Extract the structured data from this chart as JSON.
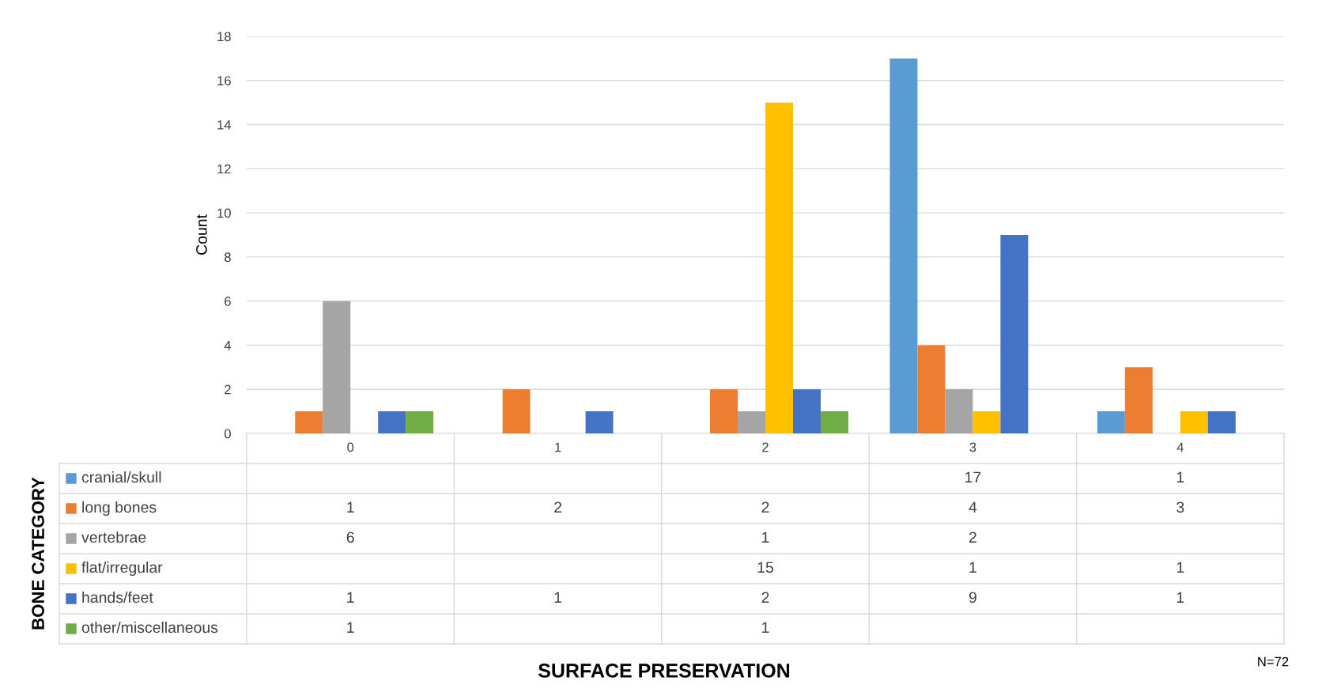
{
  "chart_data": {
    "type": "bar",
    "ylabel": "Count",
    "categories": [
      "0",
      "1",
      "2",
      "3",
      "4"
    ],
    "series": [
      {
        "name": "cranial/skull",
        "color": "#5b9bd5",
        "values": [
          null,
          null,
          null,
          17,
          1
        ]
      },
      {
        "name": "long bones",
        "color": "#ed7d31",
        "values": [
          1,
          2,
          2,
          4,
          3
        ]
      },
      {
        "name": "vertebrae",
        "color": "#a5a5a5",
        "values": [
          6,
          null,
          1,
          2,
          null
        ]
      },
      {
        "name": "flat/irregular",
        "color": "#ffc000",
        "values": [
          null,
          null,
          15,
          1,
          1
        ]
      },
      {
        "name": "hands/feet",
        "color": "#4472c4",
        "values": [
          1,
          1,
          2,
          9,
          1
        ]
      },
      {
        "name": "other/miscellaneous",
        "color": "#70ad47",
        "values": [
          1,
          null,
          1,
          null,
          null
        ]
      }
    ],
    "ylim": [
      0,
      18
    ],
    "yticks": [
      0,
      2,
      4,
      6,
      8,
      10,
      12,
      14,
      16,
      18
    ],
    "grid": "y",
    "data_labels": true,
    "legend": "bottom left",
    "annotations": [
      "BONE CATEGORY",
      "N=72",
      "SURFACE PRESERVATION"
    ]
  }
}
